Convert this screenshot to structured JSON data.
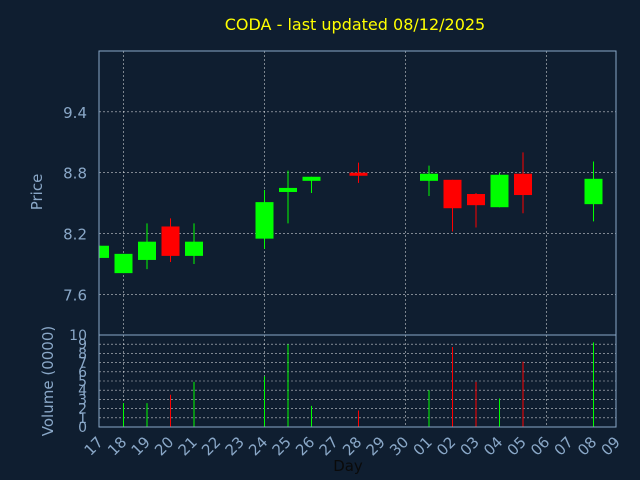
{
  "chart_data": {
    "type": "candlestick",
    "title": "CODA - last updated 08/12/2025",
    "xlabel": "Day",
    "ylabel": "Price",
    "volume_label": "Volume (0000)",
    "grid": true,
    "ylim": [
      7.2,
      10.0
    ],
    "y_ticks": [
      "9.4",
      "8.8",
      "8.2",
      "7.6"
    ],
    "y_tick_values": [
      9.4,
      8.8,
      8.2,
      7.6
    ],
    "volume_ylim": [
      0,
      10
    ],
    "volume_ticks": [
      "10",
      "9",
      "8",
      "7",
      "6",
      "5",
      "4",
      "3",
      "2",
      "1",
      "0"
    ],
    "volume_tick_values": [
      10,
      9,
      8,
      7,
      6,
      5,
      4,
      3,
      2,
      1,
      0
    ],
    "x_labels": [
      "17",
      "18",
      "19",
      "20",
      "21",
      "22",
      "23",
      "24",
      "25",
      "26",
      "27",
      "28",
      "29",
      "30",
      "01",
      "02",
      "03",
      "04",
      "05",
      "06",
      "07",
      "08",
      "09"
    ],
    "colors": {
      "up": "#00ff00",
      "down": "#ff0000",
      "title": "#ffff00",
      "axis_text": "#8aa8c8",
      "background": "#0f1e30",
      "grid": "#ffffff"
    },
    "candles": [
      {
        "day": "17",
        "open": 7.96,
        "high": 8.08,
        "low": 7.96,
        "close": 8.08,
        "volume": 0
      },
      {
        "day": "18",
        "open": 7.81,
        "high": 8.0,
        "low": 7.81,
        "close": 8.0,
        "volume": 2.6
      },
      {
        "day": "19",
        "open": 7.94,
        "high": 8.3,
        "low": 7.85,
        "close": 8.12,
        "volume": 2.6
      },
      {
        "day": "20",
        "open": 8.27,
        "high": 8.35,
        "low": 7.92,
        "close": 7.98,
        "volume": 3.5
      },
      {
        "day": "21",
        "open": 7.98,
        "high": 8.3,
        "low": 7.9,
        "close": 8.12,
        "volume": 4.9
      },
      {
        "day": "24",
        "open": 8.15,
        "high": 8.63,
        "low": 8.05,
        "close": 8.51,
        "volume": 5.5
      },
      {
        "day": "25",
        "open": 8.61,
        "high": 8.82,
        "low": 8.3,
        "close": 8.65,
        "volume": 9.0
      },
      {
        "day": "26",
        "open": 8.72,
        "high": 8.76,
        "low": 8.6,
        "close": 8.76,
        "volume": 2.3
      },
      {
        "day": "28",
        "open": 8.8,
        "high": 8.9,
        "low": 8.7,
        "close": 8.77,
        "volume": 1.8
      },
      {
        "day": "01",
        "open": 8.72,
        "high": 8.87,
        "low": 8.57,
        "close": 8.79,
        "volume": 4.0
      },
      {
        "day": "02",
        "open": 8.73,
        "high": 8.73,
        "low": 8.22,
        "close": 8.45,
        "volume": 8.7
      },
      {
        "day": "03",
        "open": 8.59,
        "high": 8.6,
        "low": 8.26,
        "close": 8.48,
        "volume": 4.9
      },
      {
        "day": "04",
        "open": 8.46,
        "high": 8.8,
        "low": 8.46,
        "close": 8.78,
        "volume": 3.1
      },
      {
        "day": "05",
        "open": 8.79,
        "high": 9.0,
        "low": 8.4,
        "close": 8.58,
        "volume": 7.1
      },
      {
        "day": "08",
        "open": 8.49,
        "high": 8.91,
        "low": 8.32,
        "close": 8.74,
        "volume": 9.2
      }
    ]
  }
}
